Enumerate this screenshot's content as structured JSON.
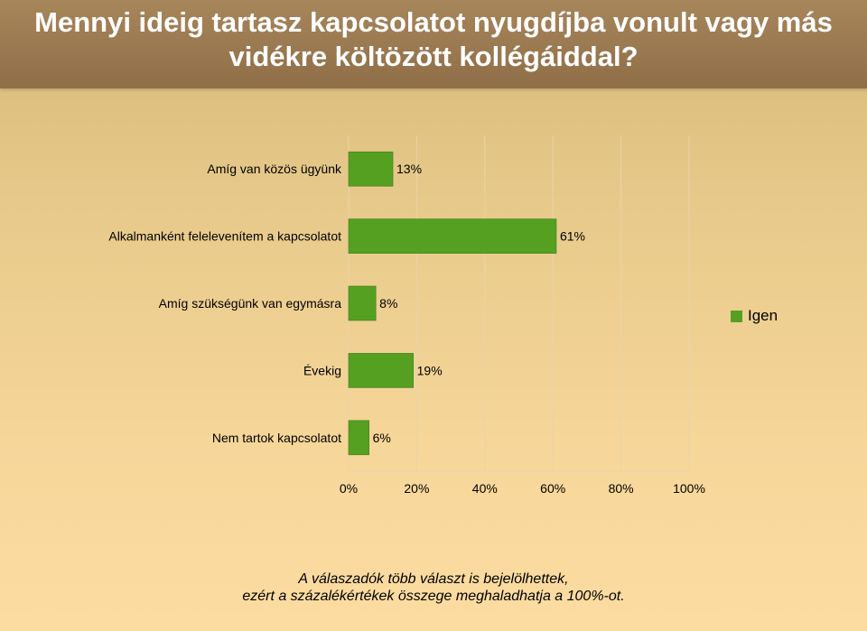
{
  "title": "Mennyi ideig tartasz kapcsolatot nyugdíjba vonult vagy más vidékre költözött kollégáiddal?",
  "footnote_line1": "A válaszadók több választ is bejelölhettek,",
  "footnote_line2": "ezért a százalékértékek összege meghaladhatja a 100%-ot.",
  "colors": {
    "bar": "#56a021",
    "bar_border": "#3d7a16",
    "grid": "#e8d4a8"
  },
  "chart_data": {
    "type": "bar",
    "orientation": "horizontal",
    "categories": [
      "Amíg van közös ügyünk",
      "Alkalmanként felelevenítem a kapcsolatot",
      "Amíg szükségünk van egymásra",
      "Évekig",
      "Nem tartok kapcsolatot"
    ],
    "series": [
      {
        "name": "Igen",
        "values": [
          13,
          61,
          8,
          19,
          6
        ],
        "labels": [
          "13%",
          "61%",
          "8%",
          "19%",
          "6%"
        ]
      }
    ],
    "xlim": [
      0,
      100
    ],
    "xticks": [
      "0%",
      "20%",
      "40%",
      "60%",
      "80%",
      "100%"
    ],
    "xtick_values": [
      0,
      20,
      40,
      60,
      80,
      100
    ],
    "grid": true,
    "legend_position": "right"
  }
}
